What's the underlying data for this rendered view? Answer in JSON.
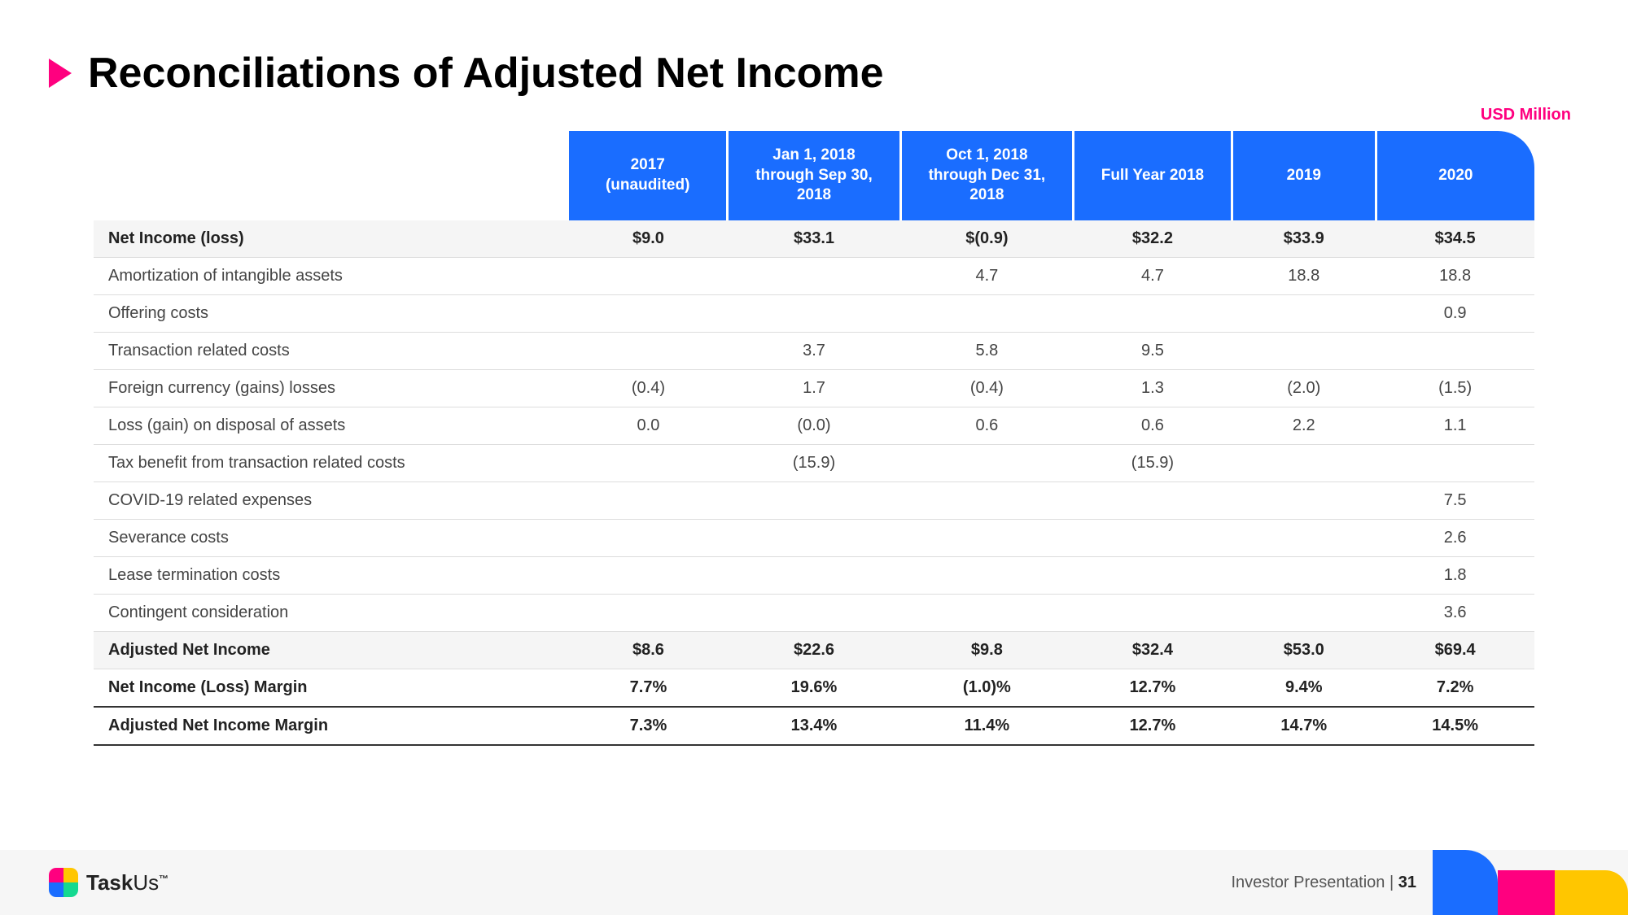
{
  "title": "Reconciliations of Adjusted Net Income",
  "unit_label": "USD Million",
  "columns": [
    "",
    "2017 (unaudited)",
    "Jan 1, 2018 through Sep 30, 2018",
    "Oct 1, 2018 through Dec 31, 2018",
    "Full Year 2018",
    "2019",
    "2020"
  ],
  "rows": [
    {
      "style": "bold",
      "cells": [
        "Net Income (loss)",
        "$9.0",
        "$33.1",
        "$(0.9)",
        "$32.2",
        "$33.9",
        "$34.5"
      ]
    },
    {
      "style": "plain",
      "cells": [
        "Amortization of intangible assets",
        "",
        "",
        "4.7",
        "4.7",
        "18.8",
        "18.8"
      ]
    },
    {
      "style": "plain",
      "cells": [
        "Offering costs",
        "",
        "",
        "",
        "",
        "",
        "0.9"
      ]
    },
    {
      "style": "plain",
      "cells": [
        "Transaction related costs",
        "",
        "3.7",
        "5.8",
        "9.5",
        "",
        ""
      ]
    },
    {
      "style": "plain",
      "cells": [
        "Foreign currency (gains) losses",
        "(0.4)",
        "1.7",
        "(0.4)",
        "1.3",
        "(2.0)",
        "(1.5)"
      ]
    },
    {
      "style": "plain",
      "cells": [
        "Loss (gain) on disposal of assets",
        "0.0",
        "(0.0)",
        "0.6",
        "0.6",
        "2.2",
        "1.1"
      ]
    },
    {
      "style": "plain",
      "cells": [
        "Tax benefit from transaction related costs",
        "",
        "(15.9)",
        "",
        "(15.9)",
        "",
        ""
      ]
    },
    {
      "style": "plain",
      "cells": [
        "COVID-19 related expenses",
        "",
        "",
        "",
        "",
        "",
        "7.5"
      ]
    },
    {
      "style": "plain",
      "cells": [
        "Severance costs",
        "",
        "",
        "",
        "",
        "",
        "2.6"
      ]
    },
    {
      "style": "plain",
      "cells": [
        "Lease termination costs",
        "",
        "",
        "",
        "",
        "",
        "1.8"
      ]
    },
    {
      "style": "plain",
      "cells": [
        "Contingent consideration",
        "",
        "",
        "",
        "",
        "",
        "3.6"
      ]
    },
    {
      "style": "bold",
      "cells": [
        "Adjusted Net Income",
        "$8.6",
        "$22.6",
        "$9.8",
        "$32.4",
        "$53.0",
        "$69.4"
      ]
    },
    {
      "style": "bold2",
      "cells": [
        "Net Income (Loss) Margin",
        "7.7%",
        "19.6%",
        "(1.0)%",
        "12.7%",
        "9.4%",
        "7.2%"
      ]
    },
    {
      "style": "bold2",
      "cells": [
        "Adjusted Net Income Margin",
        "7.3%",
        "13.4%",
        "11.4%",
        "12.7%",
        "14.7%",
        "14.5%"
      ]
    }
  ],
  "brand": {
    "name_a": "Task",
    "name_b": "Us",
    "tm": "™"
  },
  "footer_label": "Investor Presentation | ",
  "page_number": "31",
  "colors": {
    "accent_blue": "#1a6dff",
    "accent_pink": "#ff007f",
    "accent_yellow": "#ffc600"
  }
}
